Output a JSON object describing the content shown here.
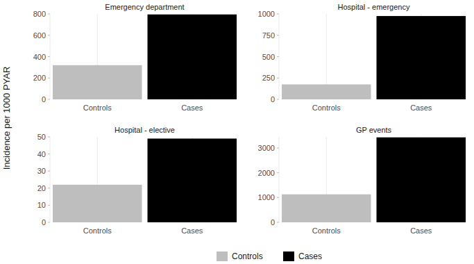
{
  "chart_data": [
    {
      "type": "bar",
      "title": "Emergency department",
      "categories": [
        "Controls",
        "Cases"
      ],
      "values": [
        320,
        795
      ],
      "colors": [
        "#bebebe",
        "#000000"
      ],
      "ylim": [
        0,
        800
      ],
      "yticks": [
        0,
        200,
        400,
        600,
        800
      ],
      "grid": true
    },
    {
      "type": "bar",
      "title": "Hospital - emergency",
      "categories": [
        "Controls",
        "Cases"
      ],
      "values": [
        175,
        975
      ],
      "colors": [
        "#bebebe",
        "#000000"
      ],
      "ylim": [
        0,
        1000
      ],
      "yticks": [
        0,
        250,
        500,
        750,
        1000
      ],
      "grid": true
    },
    {
      "type": "bar",
      "title": "Hospital - elective",
      "categories": [
        "Controls",
        "Cases"
      ],
      "values": [
        22,
        49
      ],
      "colors": [
        "#bebebe",
        "#000000"
      ],
      "ylim": [
        0,
        50
      ],
      "yticks": [
        0,
        10,
        20,
        30,
        40,
        50
      ],
      "grid": true
    },
    {
      "type": "bar",
      "title": "GP events",
      "categories": [
        "Controls",
        "Cases"
      ],
      "values": [
        1130,
        3430
      ],
      "colors": [
        "#bebebe",
        "#000000"
      ],
      "ylim": [
        0,
        3450
      ],
      "yticks": [
        0,
        1000,
        2000,
        3000
      ],
      "grid": true
    }
  ],
  "y_label": "Incidence per 1000 PYAR",
  "legend": "bottom"
}
